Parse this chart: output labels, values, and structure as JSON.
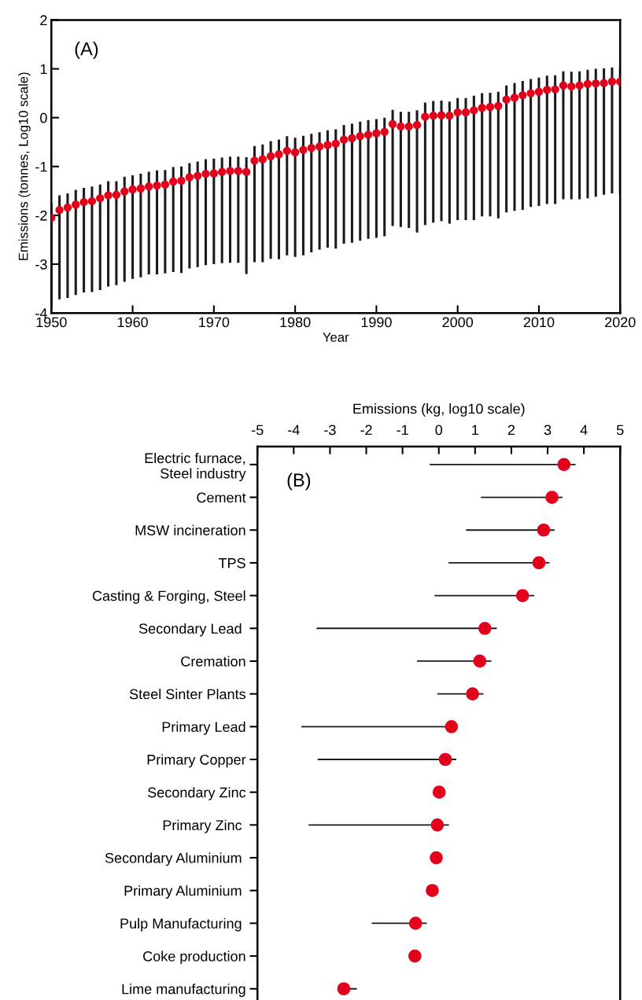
{
  "chart_data": [
    {
      "type": "scatter",
      "xlabel": "Year",
      "ylabel": "Emissions (tonnes, Log10 scale)",
      "annotations": [
        "(A)"
      ],
      "marker": "circle",
      "x": [
        1950,
        1951,
        1952,
        1953,
        1954,
        1955,
        1956,
        1957,
        1958,
        1959,
        1960,
        1961,
        1962,
        1963,
        1964,
        1965,
        1966,
        1967,
        1968,
        1969,
        1970,
        1971,
        1972,
        1973,
        1974,
        1975,
        1976,
        1977,
        1978,
        1979,
        1980,
        1981,
        1982,
        1983,
        1984,
        1985,
        1986,
        1987,
        1988,
        1989,
        1990,
        1991,
        1992,
        1993,
        1994,
        1995,
        1996,
        1997,
        1998,
        1999,
        2000,
        2001,
        2002,
        2003,
        2004,
        2005,
        2006,
        2007,
        2008,
        2009,
        2010,
        2011,
        2012,
        2013,
        2014,
        2015,
        2016,
        2017,
        2018,
        2019,
        2020
      ],
      "series": [
        {
          "color": "#e3001b",
          "values": [
            -2.05,
            -1.89,
            -1.84,
            -1.78,
            -1.73,
            -1.71,
            -1.65,
            -1.59,
            -1.58,
            -1.51,
            -1.47,
            -1.45,
            -1.41,
            -1.39,
            -1.37,
            -1.31,
            -1.29,
            -1.22,
            -1.19,
            -1.15,
            -1.14,
            -1.11,
            -1.09,
            -1.09,
            -1.11,
            -0.88,
            -0.85,
            -0.79,
            -0.75,
            -0.68,
            -0.71,
            -0.66,
            -0.62,
            -0.59,
            -0.56,
            -0.53,
            -0.45,
            -0.42,
            -0.38,
            -0.35,
            -0.32,
            -0.29,
            -0.13,
            -0.18,
            -0.18,
            -0.15,
            0.02,
            0.04,
            0.05,
            0.04,
            0.11,
            0.11,
            0.15,
            0.2,
            0.22,
            0.24,
            0.37,
            0.41,
            0.46,
            0.5,
            0.53,
            0.57,
            0.58,
            0.66,
            0.64,
            0.66,
            0.69,
            0.7,
            0.71,
            0.74,
            0.74
          ],
          "errors": [
            [
              -3.88,
              -1.75
            ],
            [
              -3.72,
              -1.59
            ],
            [
              -3.69,
              -1.55
            ],
            [
              -3.63,
              -1.48
            ],
            [
              -3.58,
              -1.44
            ],
            [
              -3.57,
              -1.41
            ],
            [
              -3.53,
              -1.37
            ],
            [
              -3.46,
              -1.3
            ],
            [
              -3.43,
              -1.3
            ],
            [
              -3.36,
              -1.21
            ],
            [
              -3.3,
              -1.18
            ],
            [
              -3.27,
              -1.15
            ],
            [
              -3.21,
              -1.11
            ],
            [
              -3.21,
              -1.08
            ],
            [
              -3.19,
              -1.07
            ],
            [
              -3.16,
              -1.01
            ],
            [
              -3.18,
              -1.0
            ],
            [
              -3.09,
              -0.93
            ],
            [
              -3.06,
              -0.9
            ],
            [
              -3.02,
              -0.85
            ],
            [
              -3.0,
              -0.84
            ],
            [
              -2.98,
              -0.82
            ],
            [
              -2.97,
              -0.8
            ],
            [
              -2.97,
              -0.8
            ],
            [
              -3.2,
              -0.81
            ],
            [
              -2.96,
              -0.58
            ],
            [
              -2.96,
              -0.55
            ],
            [
              -2.89,
              -0.48
            ],
            [
              -2.9,
              -0.45
            ],
            [
              -2.82,
              -0.38
            ],
            [
              -2.85,
              -0.41
            ],
            [
              -2.82,
              -0.37
            ],
            [
              -2.76,
              -0.33
            ],
            [
              -2.7,
              -0.3
            ],
            [
              -2.66,
              -0.26
            ],
            [
              -2.68,
              -0.24
            ],
            [
              -2.58,
              -0.15
            ],
            [
              -2.56,
              -0.12
            ],
            [
              -2.52,
              -0.08
            ],
            [
              -2.48,
              -0.05
            ],
            [
              -2.46,
              -0.03
            ],
            [
              -2.43,
              0.0
            ],
            [
              -2.22,
              0.16
            ],
            [
              -2.24,
              0.12
            ],
            [
              -2.26,
              0.12
            ],
            [
              -2.35,
              0.15
            ],
            [
              -2.2,
              0.31
            ],
            [
              -2.15,
              0.34
            ],
            [
              -2.12,
              0.35
            ],
            [
              -2.17,
              0.33
            ],
            [
              -2.1,
              0.4
            ],
            [
              -2.1,
              0.4
            ],
            [
              -2.1,
              0.45
            ],
            [
              -2.02,
              0.5
            ],
            [
              -2.02,
              0.51
            ],
            [
              -2.06,
              0.53
            ],
            [
              -1.94,
              0.66
            ],
            [
              -1.91,
              0.71
            ],
            [
              -1.89,
              0.75
            ],
            [
              -1.83,
              0.79
            ],
            [
              -1.81,
              0.82
            ],
            [
              -1.77,
              0.86
            ],
            [
              -1.77,
              0.87
            ],
            [
              -1.67,
              0.95
            ],
            [
              -1.67,
              0.94
            ],
            [
              -1.67,
              0.95
            ],
            [
              -1.65,
              0.98
            ],
            [
              -1.62,
              1.0
            ],
            [
              -1.58,
              1.01
            ],
            [
              -1.55,
              1.03
            ],
            [
              -1.59,
              1.03
            ]
          ]
        }
      ],
      "xlim": [
        1950,
        2020
      ],
      "xticks": [
        1950,
        1960,
        1970,
        1980,
        1990,
        2000,
        2010,
        2020
      ],
      "ylim": [
        -4,
        2
      ],
      "yticks": [
        -4,
        -3,
        -2,
        -1,
        0,
        1,
        2
      ]
    },
    {
      "type": "scatter",
      "orientation": "horizontal",
      "xlabel": "Emissions (kg, log10 scale)",
      "annotations": [
        "(B)"
      ],
      "marker": "circle",
      "categories": [
        "Electric furnace,\nSteel industry",
        "Cement",
        "MSW incineration",
        "TPS",
        "Casting & Forging, Steel",
        "Secondary Lead ",
        "Cremation",
        "Steel Sinter Plants",
        "Primary Lead",
        "Primary Copper",
        "Secondary Zinc",
        "Primary Zinc ",
        "Secondary Aluminium ",
        "Primary Aluminium ",
        "Pulp Manufacturing ",
        "Coke production",
        "Lime manufacturing"
      ],
      "series": [
        {
          "color": "#e3001b",
          "values": [
            3.45,
            3.12,
            2.89,
            2.76,
            2.31,
            1.27,
            1.13,
            0.93,
            0.35,
            0.18,
            0.01,
            -0.04,
            -0.07,
            -0.18,
            -0.64,
            -0.66,
            -2.62
          ],
          "errors": [
            [
              -0.25,
              3.77
            ],
            [
              1.16,
              3.41
            ],
            [
              0.75,
              3.19
            ],
            [
              0.27,
              3.05
            ],
            [
              -0.12,
              2.63
            ],
            [
              -3.37,
              1.6
            ],
            [
              -0.6,
              1.45
            ],
            [
              -0.04,
              1.23
            ],
            [
              -3.79,
              0.45
            ],
            [
              -3.34,
              0.48
            ],
            null,
            [
              -3.59,
              0.28
            ],
            null,
            null,
            [
              -1.85,
              -0.33
            ],
            null,
            [
              -2.62,
              -2.26
            ]
          ]
        }
      ],
      "xlim": [
        -5,
        5
      ],
      "xticks": [
        -5,
        -4,
        -3,
        -2,
        -1,
        0,
        1,
        2,
        3,
        4,
        5
      ]
    }
  ]
}
